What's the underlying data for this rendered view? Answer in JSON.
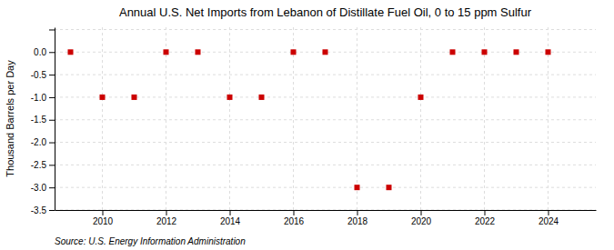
{
  "chart_data": {
    "type": "scatter",
    "title": "Annual U.S. Net Imports from Lebanon of Distillate Fuel Oil, 0 to 15 ppm Sulfur",
    "ylabel": "Thousand Barrels per Day",
    "source": "Source: U.S. Energy Information Administration",
    "x": [
      2009,
      2010,
      2011,
      2012,
      2013,
      2014,
      2015,
      2016,
      2017,
      2018,
      2019,
      2020,
      2021,
      2022,
      2023,
      2024
    ],
    "values": [
      0,
      -1,
      -1,
      0,
      0,
      -1,
      -1,
      0,
      0,
      -3,
      -3,
      -1,
      0,
      0,
      0,
      0
    ],
    "color": "#cc0000",
    "marker": "square",
    "xlim": [
      2008.5,
      2025.5
    ],
    "ylim": [
      -3.5,
      0.55
    ],
    "xticks": [
      2010,
      2012,
      2014,
      2016,
      2018,
      2020,
      2022,
      2024
    ],
    "yticks": [
      {
        "value": 0.5,
        "label": null
      },
      {
        "value": 0.0,
        "label": "0.0"
      },
      -0.5,
      {
        "value": -1.0,
        "label": "-1.0"
      },
      -1.5,
      {
        "value": -2.0,
        "label": "-2.0"
      },
      -2.5,
      {
        "value": -3.0,
        "label": "-3.0"
      },
      -3.5
    ],
    "grid": true
  }
}
